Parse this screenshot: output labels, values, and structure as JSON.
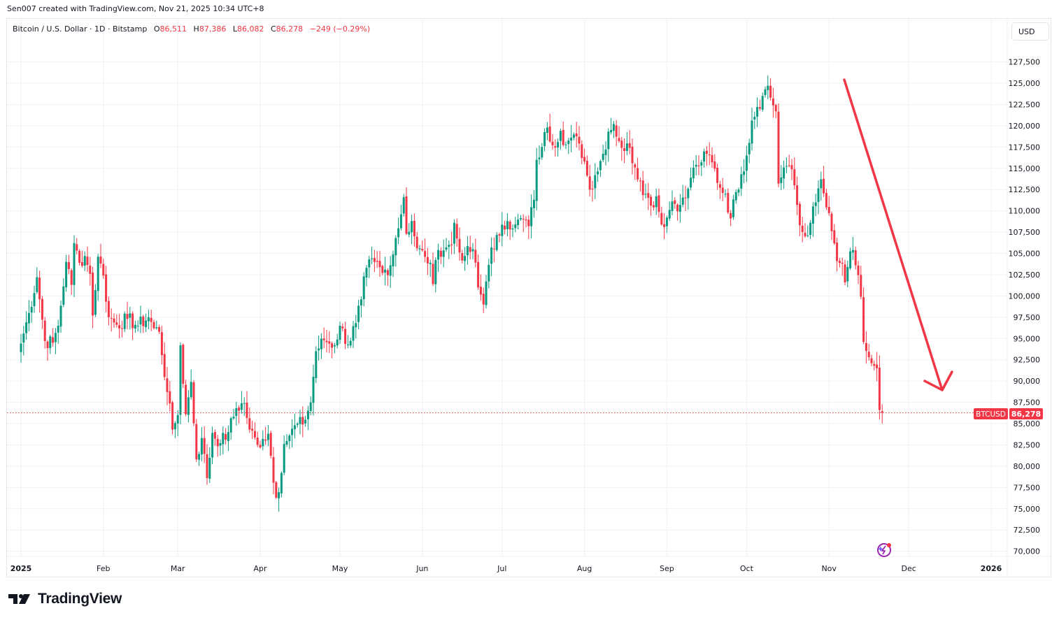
{
  "header": {
    "credit": "Sen007 created with TradingView.com, Nov 21, 2025 10:34 UTC+8"
  },
  "legend": {
    "symbol": "Bitcoin / U.S. Dollar · 1D · Bitstamp",
    "open_label": "O",
    "open": "86,511",
    "high_label": "H",
    "high": "87,386",
    "low_label": "L",
    "low": "86,082",
    "close_label": "C",
    "close": "86,278",
    "change": "−249 (−0.29%)"
  },
  "currency_button": "USD",
  "price_tag": {
    "symbol": "BTCUSD",
    "price": "86,278"
  },
  "branding": {
    "logo_text": "TradingView"
  },
  "colors": {
    "up": "#089981",
    "down": "#f23645",
    "grid": "#f0f1f3",
    "text": "#131722",
    "arrow": "#f23645",
    "ai_icon": "#9c27b0"
  },
  "chart_data": {
    "type": "candlestick",
    "title": "Bitcoin / U.S. Dollar · 1D · Bitstamp",
    "xlabel": "",
    "ylabel": "USD",
    "ylim": [
      70000,
      130000
    ],
    "y_ticks": [
      "127,500",
      "125,000",
      "122,500",
      "120,000",
      "117,500",
      "115,000",
      "112,500",
      "110,000",
      "107,500",
      "105,000",
      "102,500",
      "100,000",
      "97,500",
      "95,000",
      "92,500",
      "90,000",
      "87,500",
      "85,000",
      "82,500",
      "80,000",
      "77,500",
      "75,000",
      "72,500",
      "70,000"
    ],
    "x_ticks": [
      {
        "label": "2025",
        "day": 0,
        "bold": true
      },
      {
        "label": "Feb",
        "day": 31
      },
      {
        "label": "Mar",
        "day": 59
      },
      {
        "label": "Apr",
        "day": 90
      },
      {
        "label": "May",
        "day": 120
      },
      {
        "label": "Jun",
        "day": 151
      },
      {
        "label": "Jul",
        "day": 181
      },
      {
        "label": "Aug",
        "day": 212
      },
      {
        "label": "Sep",
        "day": 243
      },
      {
        "label": "Oct",
        "day": 273
      },
      {
        "label": "Nov",
        "day": 304
      },
      {
        "label": "Dec",
        "day": 334
      },
      {
        "label": "2026",
        "day": 365,
        "bold": true
      }
    ],
    "grid": true,
    "last_price": 86278,
    "keyframes_closes": [
      [
        0,
        94400
      ],
      [
        3,
        98000
      ],
      [
        6,
        102200
      ],
      [
        9,
        94700
      ],
      [
        12,
        94500
      ],
      [
        14,
        96500
      ],
      [
        17,
        104000
      ],
      [
        19,
        101300
      ],
      [
        20,
        106200
      ],
      [
        22,
        103900
      ],
      [
        24,
        104700
      ],
      [
        26,
        102600
      ],
      [
        27,
        97700
      ],
      [
        29,
        104600
      ],
      [
        31,
        102400
      ],
      [
        33,
        97500
      ],
      [
        36,
        96600
      ],
      [
        40,
        97300
      ],
      [
        44,
        96500
      ],
      [
        48,
        97500
      ],
      [
        50,
        96200
      ],
      [
        52,
        95800
      ],
      [
        55,
        88700
      ],
      [
        57,
        84300
      ],
      [
        59,
        86000
      ],
      [
        60,
        94200
      ],
      [
        62,
        86100
      ],
      [
        64,
        89900
      ],
      [
        66,
        80800
      ],
      [
        68,
        83300
      ],
      [
        70,
        78600
      ],
      [
        72,
        83900
      ],
      [
        75,
        82700
      ],
      [
        78,
        84000
      ],
      [
        81,
        86800
      ],
      [
        84,
        87400
      ],
      [
        86,
        84300
      ],
      [
        89,
        82500
      ],
      [
        91,
        83200
      ],
      [
        93,
        83800
      ],
      [
        96,
        76300
      ],
      [
        98,
        79200
      ],
      [
        99,
        82600
      ],
      [
        101,
        83600
      ],
      [
        104,
        85000
      ],
      [
        106,
        84900
      ],
      [
        109,
        87500
      ],
      [
        111,
        93500
      ],
      [
        114,
        94800
      ],
      [
        118,
        94200
      ],
      [
        120,
        96500
      ],
      [
        123,
        94300
      ],
      [
        126,
        96800
      ],
      [
        128,
        99600
      ],
      [
        130,
        103300
      ],
      [
        133,
        104000
      ],
      [
        136,
        102700
      ],
      [
        139,
        103600
      ],
      [
        141,
        106800
      ],
      [
        143,
        109600
      ],
      [
        144,
        111600
      ],
      [
        145,
        107300
      ],
      [
        147,
        108800
      ],
      [
        149,
        105600
      ],
      [
        152,
        104600
      ],
      [
        154,
        103900
      ],
      [
        155,
        101400
      ],
      [
        157,
        105400
      ],
      [
        160,
        105700
      ],
      [
        162,
        106000
      ],
      [
        163,
        108600
      ],
      [
        165,
        105100
      ],
      [
        167,
        104700
      ],
      [
        170,
        105500
      ],
      [
        172,
        101000
      ],
      [
        174,
        99000
      ],
      [
        175,
        101700
      ],
      [
        177,
        105700
      ],
      [
        180,
        107100
      ],
      [
        183,
        108800
      ],
      [
        186,
        108400
      ],
      [
        189,
        109000
      ],
      [
        191,
        108200
      ],
      [
        193,
        111300
      ],
      [
        194,
        116000
      ],
      [
        196,
        117500
      ],
      [
        198,
        119800
      ],
      [
        200,
        117700
      ],
      [
        203,
        119400
      ],
      [
        205,
        117800
      ],
      [
        207,
        118600
      ],
      [
        210,
        117900
      ],
      [
        212,
        115800
      ],
      [
        214,
        112500
      ],
      [
        216,
        114200
      ],
      [
        219,
        116700
      ],
      [
        221,
        119300
      ],
      [
        223,
        120200
      ],
      [
        225,
        118200
      ],
      [
        226,
        117400
      ],
      [
        229,
        117400
      ],
      [
        231,
        115100
      ],
      [
        233,
        113500
      ],
      [
        235,
        112000
      ],
      [
        237,
        110600
      ],
      [
        239,
        111700
      ],
      [
        241,
        108400
      ],
      [
        243,
        109200
      ],
      [
        245,
        111100
      ],
      [
        248,
        110700
      ],
      [
        250,
        111500
      ],
      [
        252,
        113900
      ],
      [
        254,
        115400
      ],
      [
        256,
        115700
      ],
      [
        258,
        116700
      ],
      [
        260,
        115700
      ],
      [
        263,
        112700
      ],
      [
        265,
        112000
      ],
      [
        267,
        109100
      ],
      [
        269,
        112200
      ],
      [
        271,
        114300
      ],
      [
        273,
        116500
      ],
      [
        275,
        120600
      ],
      [
        277,
        122200
      ],
      [
        279,
        123500
      ],
      [
        281,
        124700
      ],
      [
        282,
        123300
      ],
      [
        284,
        121700
      ],
      [
        285,
        113200
      ],
      [
        287,
        115100
      ],
      [
        289,
        115300
      ],
      [
        291,
        113000
      ],
      [
        293,
        108300
      ],
      [
        295,
        107000
      ],
      [
        297,
        108600
      ],
      [
        299,
        111000
      ],
      [
        301,
        113700
      ],
      [
        303,
        110400
      ],
      [
        305,
        107600
      ],
      [
        307,
        104100
      ],
      [
        309,
        103800
      ],
      [
        310,
        101600
      ],
      [
        311,
        103400
      ],
      [
        313,
        105400
      ],
      [
        314,
        103600
      ],
      [
        316,
        99900
      ],
      [
        317,
        94600
      ],
      [
        319,
        92800
      ],
      [
        320,
        92100
      ],
      [
        322,
        91500
      ],
      [
        323,
        86600
      ],
      [
        324,
        86278
      ]
    ]
  },
  "drawing": {
    "type": "arrow",
    "from": [
      1207,
      114
    ],
    "to": [
      1347,
      558
    ]
  }
}
